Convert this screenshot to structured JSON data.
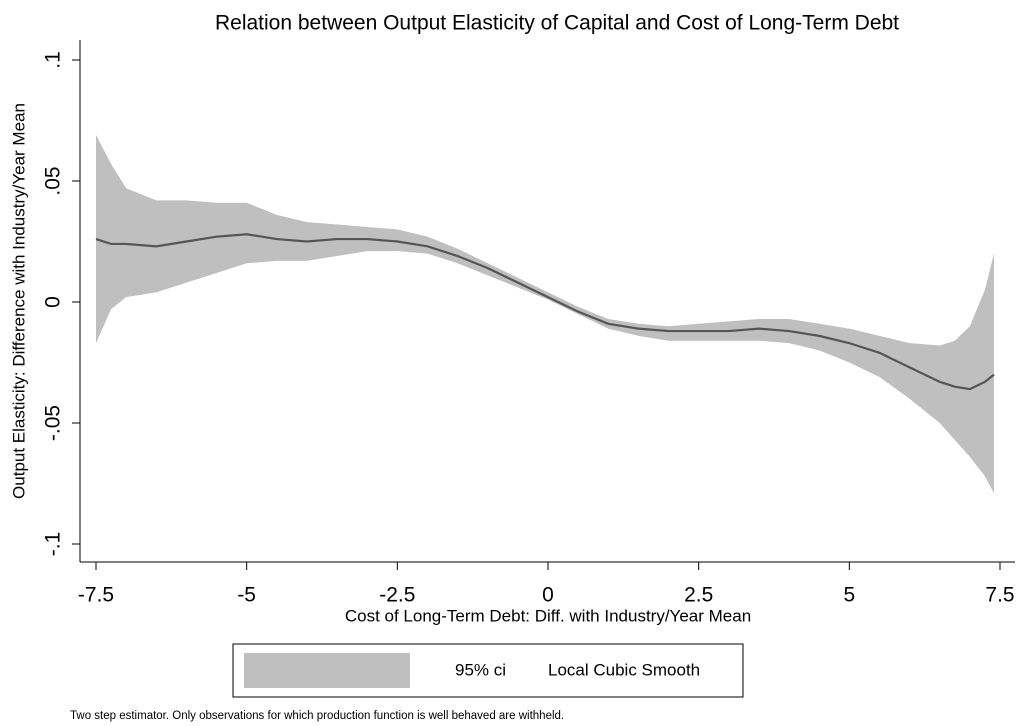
{
  "chart_data": {
    "type": "line",
    "title": "Relation between Output Elasticity of Capital and Cost of Long-Term Debt",
    "x_label": "Cost of Long-Term Debt: Diff. with Industry/Year Mean",
    "y_label": "Output Elasticity: Difference with Industry/Year Mean",
    "note": "Two step estimator. Only observations for which production function is well behaved are withheld.",
    "x": [
      -7.5,
      -7.25,
      -7.0,
      -6.5,
      -6.0,
      -5.5,
      -5.0,
      -4.5,
      -4.0,
      -3.5,
      -3.0,
      -2.5,
      -2.0,
      -1.5,
      -1.0,
      -0.5,
      0,
      0.5,
      1.0,
      1.5,
      2.0,
      2.5,
      3.0,
      3.5,
      4.0,
      4.5,
      5.0,
      5.5,
      6.0,
      6.5,
      6.75,
      7.0,
      7.25,
      7.4
    ],
    "series": [
      {
        "name": "95% ci",
        "color": "#bfbfbf",
        "lower": [
          -0.017,
          -0.003,
          0.002,
          0.004,
          0.008,
          0.012,
          0.016,
          0.017,
          0.017,
          0.019,
          0.021,
          0.021,
          0.02,
          0.016,
          0.011,
          0.006,
          0.001,
          -0.005,
          -0.011,
          -0.014,
          -0.016,
          -0.016,
          -0.016,
          -0.016,
          -0.017,
          -0.02,
          -0.025,
          -0.031,
          -0.04,
          -0.05,
          -0.057,
          -0.064,
          -0.072,
          -0.079
        ],
        "upper": [
          0.069,
          0.057,
          0.047,
          0.042,
          0.042,
          0.041,
          0.041,
          0.036,
          0.033,
          0.032,
          0.031,
          0.03,
          0.027,
          0.022,
          0.016,
          0.01,
          0.004,
          -0.002,
          -0.007,
          -0.009,
          -0.01,
          -0.009,
          -0.008,
          -0.007,
          -0.007,
          -0.009,
          -0.011,
          -0.014,
          -0.017,
          -0.018,
          -0.016,
          -0.01,
          0.005,
          0.02
        ]
      },
      {
        "name": "Local Cubic Smooth",
        "color": "#555555",
        "values": [
          0.026,
          0.024,
          0.024,
          0.023,
          0.025,
          0.027,
          0.028,
          0.026,
          0.025,
          0.026,
          0.026,
          0.025,
          0.023,
          0.019,
          0.014,
          0.008,
          0.002,
          -0.004,
          -0.009,
          -0.011,
          -0.012,
          -0.012,
          -0.012,
          -0.011,
          -0.012,
          -0.014,
          -0.017,
          -0.021,
          -0.027,
          -0.033,
          -0.035,
          -0.036,
          -0.033,
          -0.03
        ]
      }
    ],
    "xlim": [
      -7.5,
      7.5
    ],
    "ylim": [
      -0.1,
      0.1
    ],
    "xticks": [
      -7.5,
      -5,
      -2.5,
      0,
      2.5,
      5,
      7.5
    ],
    "yticks": [
      {
        "value": -0.1,
        "label": "-.1"
      },
      {
        "value": -0.05,
        "label": "-.05"
      },
      {
        "value": 0,
        "label": "0"
      },
      {
        "value": 0.05,
        "label": ".05"
      },
      {
        "value": 0.1,
        "label": ".1"
      }
    ],
    "grid": false
  }
}
